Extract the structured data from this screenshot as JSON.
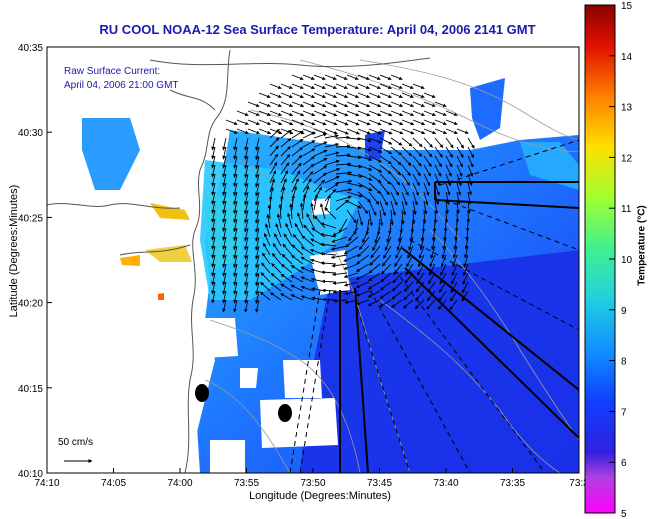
{
  "title": "RU COOL  NOAA-12  Sea Surface Temperature:  April 04, 2006 2141 GMT",
  "legend": {
    "line1": "Raw Surface Current:",
    "line2": "April 04, 2006 21:00 GMT"
  },
  "scale_label": "50 cm/s",
  "axes": {
    "xlabel": "Longitude (Degrees:Minutes)",
    "ylabel": "Latitude (Degrees:Minutes)",
    "xticks": [
      "74:10",
      "74:05",
      "74:00",
      "73:55",
      "73:50",
      "73:45",
      "73:40",
      "73:35",
      "73:3"
    ],
    "yticks": [
      "40:35",
      "40:30",
      "40:25",
      "40:20",
      "40:15",
      "40:10"
    ]
  },
  "colorbar": {
    "label": "Temperature (°C)",
    "ticks": [
      "15",
      "14",
      "13",
      "12",
      "11",
      "10",
      "9",
      "8",
      "7",
      "6",
      "5"
    ],
    "colors": [
      "#ff00ff",
      "#5a10c8",
      "#1020ff",
      "#0050ff",
      "#1aa0ff",
      "#30e0c0",
      "#50ff60",
      "#d0ff20",
      "#ffd000",
      "#ff7000",
      "#e01000",
      "#900000"
    ]
  },
  "colors": {
    "title": "#1a1ab0",
    "land": "#ffffff",
    "ocean_cold": "#1a3cff",
    "ocean_warm": "#28b4ff"
  }
}
